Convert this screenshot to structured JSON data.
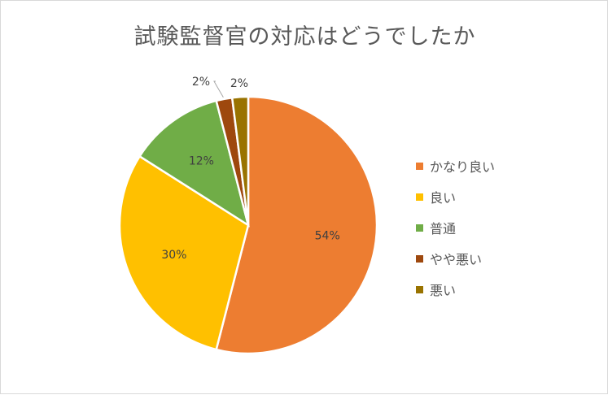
{
  "chart_data": {
    "type": "pie",
    "title": "試験監督官の対応はどうでしたか",
    "categories": [
      "かなり良い",
      "良い",
      "普通",
      "やや悪い",
      "悪い"
    ],
    "values": [
      54,
      30,
      12,
      2,
      2
    ],
    "labels": [
      "54%",
      "30%",
      "12%",
      "2%",
      "2%"
    ],
    "colors": [
      "#ED7D31",
      "#FFC000",
      "#70AD47",
      "#9E480E",
      "#997300"
    ],
    "legend_position": "right",
    "grid": false
  }
}
